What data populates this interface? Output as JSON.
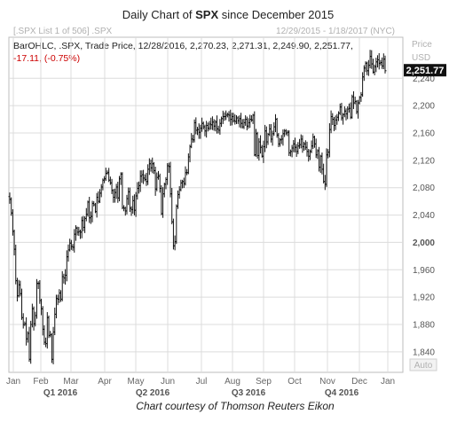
{
  "title_prefix": "Daily Chart of ",
  "title_symbol": "SPX",
  "title_suffix": " since December 2015",
  "list_label": "[.SPX List 1 of 506] .SPX",
  "date_range": "12/29/2015 - 1/18/2017 (NYC)",
  "info_line": "BarOHLC, .SPX, Trade Price,  12/28/2016, 2,270.23, 2,271.31, 2,249.90, 2,251.77,",
  "change_line": "-17.11, (-0.75%)",
  "price_label": "Price",
  "currency_label": "USD",
  "auto_label": "Auto",
  "credit": "Chart courtesy of Thomson Reuters Eikon",
  "colors": {
    "last_badge": "#111111",
    "negative": "#cc0000"
  },
  "chart_data": {
    "type": "ohlc-bar",
    "ylim": [
      1810,
      2300
    ],
    "y_ticks": [
      {
        "value": 1840,
        "label": "1,840"
      },
      {
        "value": 1880,
        "label": "1,880"
      },
      {
        "value": 1920,
        "label": "1,920"
      },
      {
        "value": 1960,
        "label": "1,960"
      },
      {
        "value": 2000,
        "label": "2,000",
        "bold": true
      },
      {
        "value": 2040,
        "label": "2,040"
      },
      {
        "value": 2080,
        "label": "2,080"
      },
      {
        "value": 2120,
        "label": "2,120"
      },
      {
        "value": 2160,
        "label": "2,160"
      },
      {
        "value": 2200,
        "label": "2,200"
      },
      {
        "value": 2240,
        "label": "2,240"
      }
    ],
    "last_value": 2251.77,
    "last_label": "2,251.77",
    "months": [
      "Jan",
      "Feb",
      "Mar",
      "Apr",
      "May",
      "Jun",
      "Jul",
      "Aug",
      "Sep",
      "Oct",
      "Nov",
      "Dec",
      "Jan"
    ],
    "quarters": [
      "Q1 2016",
      "Q2 2016",
      "Q3 2016",
      "Q4 2016"
    ],
    "closes": [
      2063,
      2043,
      2016,
      1990,
      1944,
      1922,
      1938,
      1925,
      1890,
      1880,
      1881,
      1859,
      1867,
      1829,
      1880,
      1903,
      1881,
      1893,
      1940,
      1940,
      1915,
      1903,
      1873,
      1854,
      1852,
      1890,
      1864,
      1865,
      1829,
      1869,
      1895,
      1918,
      1917,
      1926,
      1917,
      1950,
      1948,
      1952,
      1979,
      1989,
      1999,
      1994,
      1993,
      2012,
      2021,
      2015,
      2016,
      2015,
      2032,
      2022,
      2035,
      2041,
      2059,
      2036,
      2038,
      2057,
      2055,
      2045,
      2066,
      2060,
      2072,
      2081,
      2091,
      2093,
      2101,
      2102,
      2091,
      2087,
      2076,
      2066,
      2073,
      2081,
      2065,
      2093,
      2100,
      2051,
      2050,
      2046,
      2064,
      2074,
      2050,
      2048,
      2061,
      2047,
      2068,
      2079,
      2083,
      2097,
      2099,
      2094,
      2092,
      2089,
      2107,
      2115,
      2109,
      2115,
      2105,
      2078,
      2095,
      2097,
      2079,
      2042,
      2071,
      2085,
      2092,
      2112,
      2111,
      2071,
      2030,
      1995,
      2001,
      2053,
      2070,
      2077,
      2087,
      2089,
      2086,
      2102,
      2102,
      2125,
      2140,
      2151,
      2150,
      2175,
      2164,
      2165,
      2161,
      2167,
      2174,
      2169,
      2163,
      2171,
      2167,
      2173,
      2172,
      2176,
      2170,
      2176,
      2166,
      2164,
      2174,
      2181,
      2184,
      2184,
      2186,
      2187,
      2186,
      2180,
      2184,
      2178,
      2177,
      2182,
      2178,
      2181,
      2174,
      2169,
      2175,
      2180,
      2170,
      2175,
      2180,
      2179,
      2186,
      2128,
      2159,
      2127,
      2147,
      2139,
      2126,
      2140,
      2163,
      2147,
      2158,
      2166,
      2151,
      2159,
      2169,
      2180,
      2157,
      2144,
      2150,
      2151,
      2159,
      2163,
      2160,
      2161,
      2131,
      2133,
      2138,
      2144,
      2139,
      2133,
      2141,
      2143,
      2151,
      2140,
      2144,
      2139,
      2133,
      2126,
      2133,
      2141,
      2154,
      2144,
      2128,
      2134,
      2110,
      2126,
      2107,
      2089,
      2085,
      2128,
      2132,
      2165,
      2184,
      2180,
      2171,
      2179,
      2183,
      2189,
      2198,
      2182,
      2187,
      2192,
      2188,
      2195,
      2196,
      2183,
      2213,
      2204,
      2206,
      2191,
      2204,
      2212,
      2216,
      2242,
      2255,
      2262,
      2251,
      2259,
      2272,
      2261,
      2249,
      2257,
      2264,
      2267,
      2262,
      2263,
      2258,
      2268,
      2251
    ]
  }
}
